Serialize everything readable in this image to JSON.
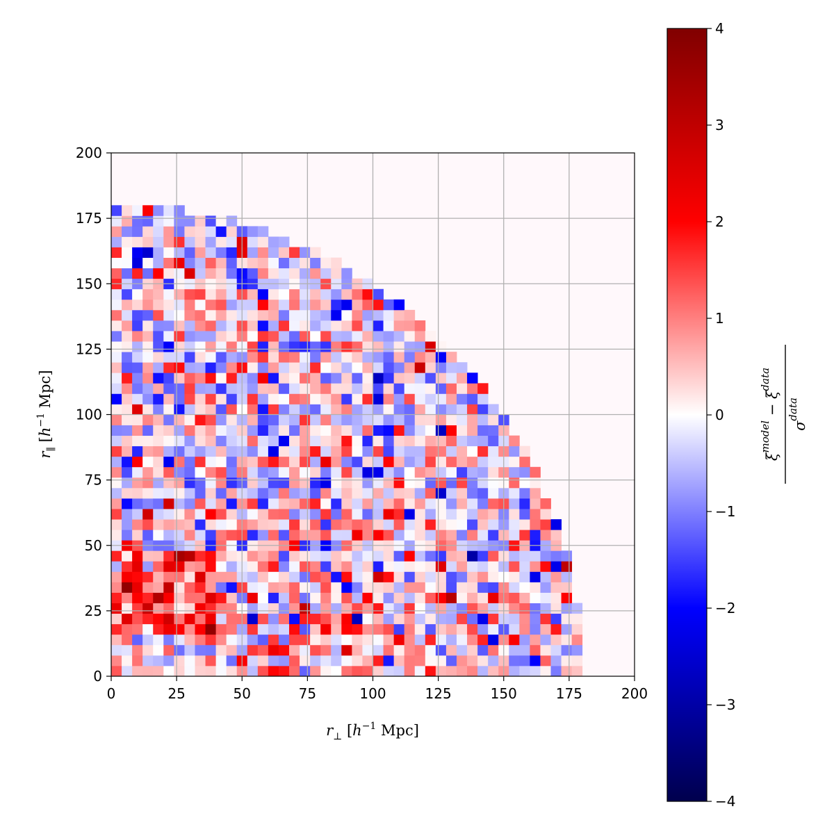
{
  "chart_data": {
    "type": "heatmap",
    "xlabel": "r⊥ [h⁻¹ Mpc]",
    "ylabel": "r∥ [h⁻¹ Mpc]",
    "xlim": [
      0,
      200
    ],
    "ylim": [
      0,
      200
    ],
    "xticks": [
      "0",
      "25",
      "50",
      "75",
      "100",
      "125",
      "150",
      "175",
      "200"
    ],
    "yticks": [
      "0",
      "25",
      "50",
      "75",
      "100",
      "125",
      "150",
      "175",
      "200"
    ],
    "grid": true,
    "bin_size": 4,
    "data_extent": "quarter disk, r = sqrt(r⊥² + r∥²) < 180",
    "colorbar": {
      "label_numerator": "ξmodel − ξdata",
      "label_denominator": "σdata",
      "range": [
        -4,
        4
      ],
      "ticks": [
        "4",
        "3",
        "2",
        "1",
        "0",
        "−1",
        "−2",
        "−3",
        "−4"
      ],
      "colormap": "seismic"
    }
  },
  "colors": {
    "background_cell": "#fff8fb",
    "grid": "#b0b0b0",
    "axes": "#000000"
  }
}
